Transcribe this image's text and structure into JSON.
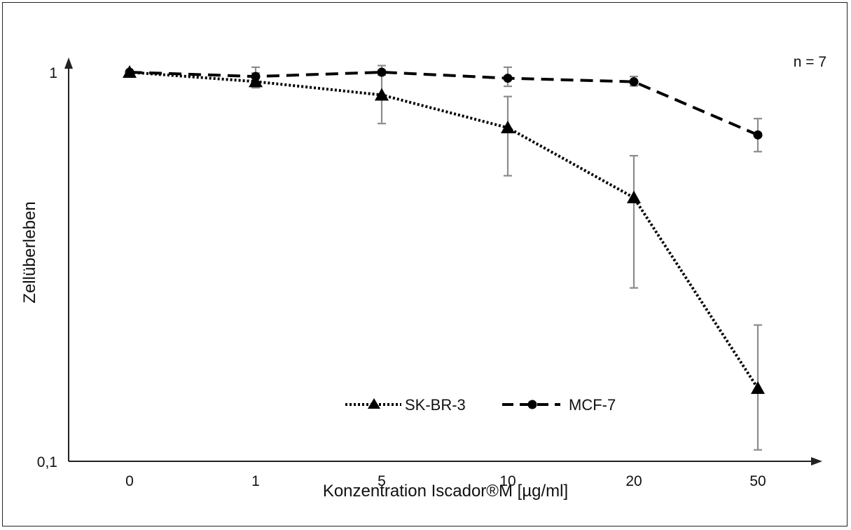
{
  "chart_data": {
    "type": "line",
    "title": "",
    "xlabel": "Konzentration Iscador®M [µg/ml]",
    "ylabel": "Zellüberleben",
    "yscale": "log",
    "ylim": [
      0.1,
      1
    ],
    "yticks": [
      "1",
      "0,1"
    ],
    "categories": [
      "0",
      "1",
      "5",
      "10",
      "20",
      "50"
    ],
    "annotation": "n = 7",
    "legend_position": "bottom-center",
    "grid": false,
    "series": [
      {
        "name": "SK-BR-3",
        "line_style": "dotted",
        "marker": "triangle",
        "color": "#000000",
        "values": [
          1.0,
          0.946,
          0.874,
          0.72,
          0.476,
          0.154
        ],
        "err_low": [
          1.0,
          0.912,
          0.738,
          0.542,
          0.279,
          0.107
        ],
        "err_high": [
          1.0,
          0.995,
          0.995,
          0.866,
          0.61,
          0.224
        ]
      },
      {
        "name": "MCF-7",
        "line_style": "dashed",
        "marker": "circle",
        "color": "#000000",
        "values": [
          1.0,
          0.975,
          1.0,
          0.965,
          0.945,
          0.69
        ],
        "err_low": [
          1.0,
          0.963,
          0.983,
          0.92,
          0.922,
          0.625
        ],
        "err_high": [
          1.0,
          1.03,
          1.04,
          1.03,
          0.975,
          0.76
        ]
      }
    ],
    "errorbar_color": "#8c8c8c"
  }
}
